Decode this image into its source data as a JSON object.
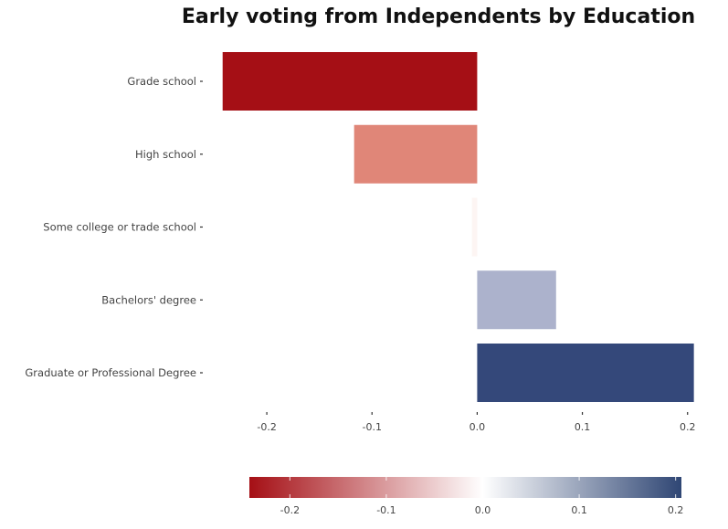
{
  "chart_data": {
    "type": "bar",
    "orientation": "horizontal",
    "title": "Early voting from Independents by Education",
    "xlabel": "",
    "ylabel": "",
    "categories": [
      "Grade school",
      "High school",
      "Some college or trade school",
      "Bachelors' degree",
      "Graduate or Professional Degree"
    ],
    "values": [
      -0.242,
      -0.117,
      -0.005,
      0.075,
      0.206
    ],
    "bar_colors": [
      "#a50f15",
      "#e08678",
      "#fdf5f3",
      "#acb2cc",
      "#34487a"
    ],
    "xlim": [
      -0.26,
      0.215
    ],
    "x_ticks": [
      -0.2,
      -0.1,
      0.0,
      0.1,
      0.2
    ],
    "x_tick_labels": [
      "-0.2",
      "-0.1",
      "0.0",
      "0.1",
      "0.2"
    ],
    "grid": false,
    "colorbar": {
      "position": "bottom",
      "range": [
        -0.242,
        0.206
      ],
      "ticks": [
        -0.2,
        -0.1,
        0.0,
        0.1,
        0.2
      ],
      "tick_labels": [
        "-0.2",
        "-0.1",
        "0.0",
        "0.1",
        "0.2"
      ],
      "low_color": "#a50f15",
      "mid_color": "#ffffff",
      "high_color": "#2f4674"
    }
  }
}
